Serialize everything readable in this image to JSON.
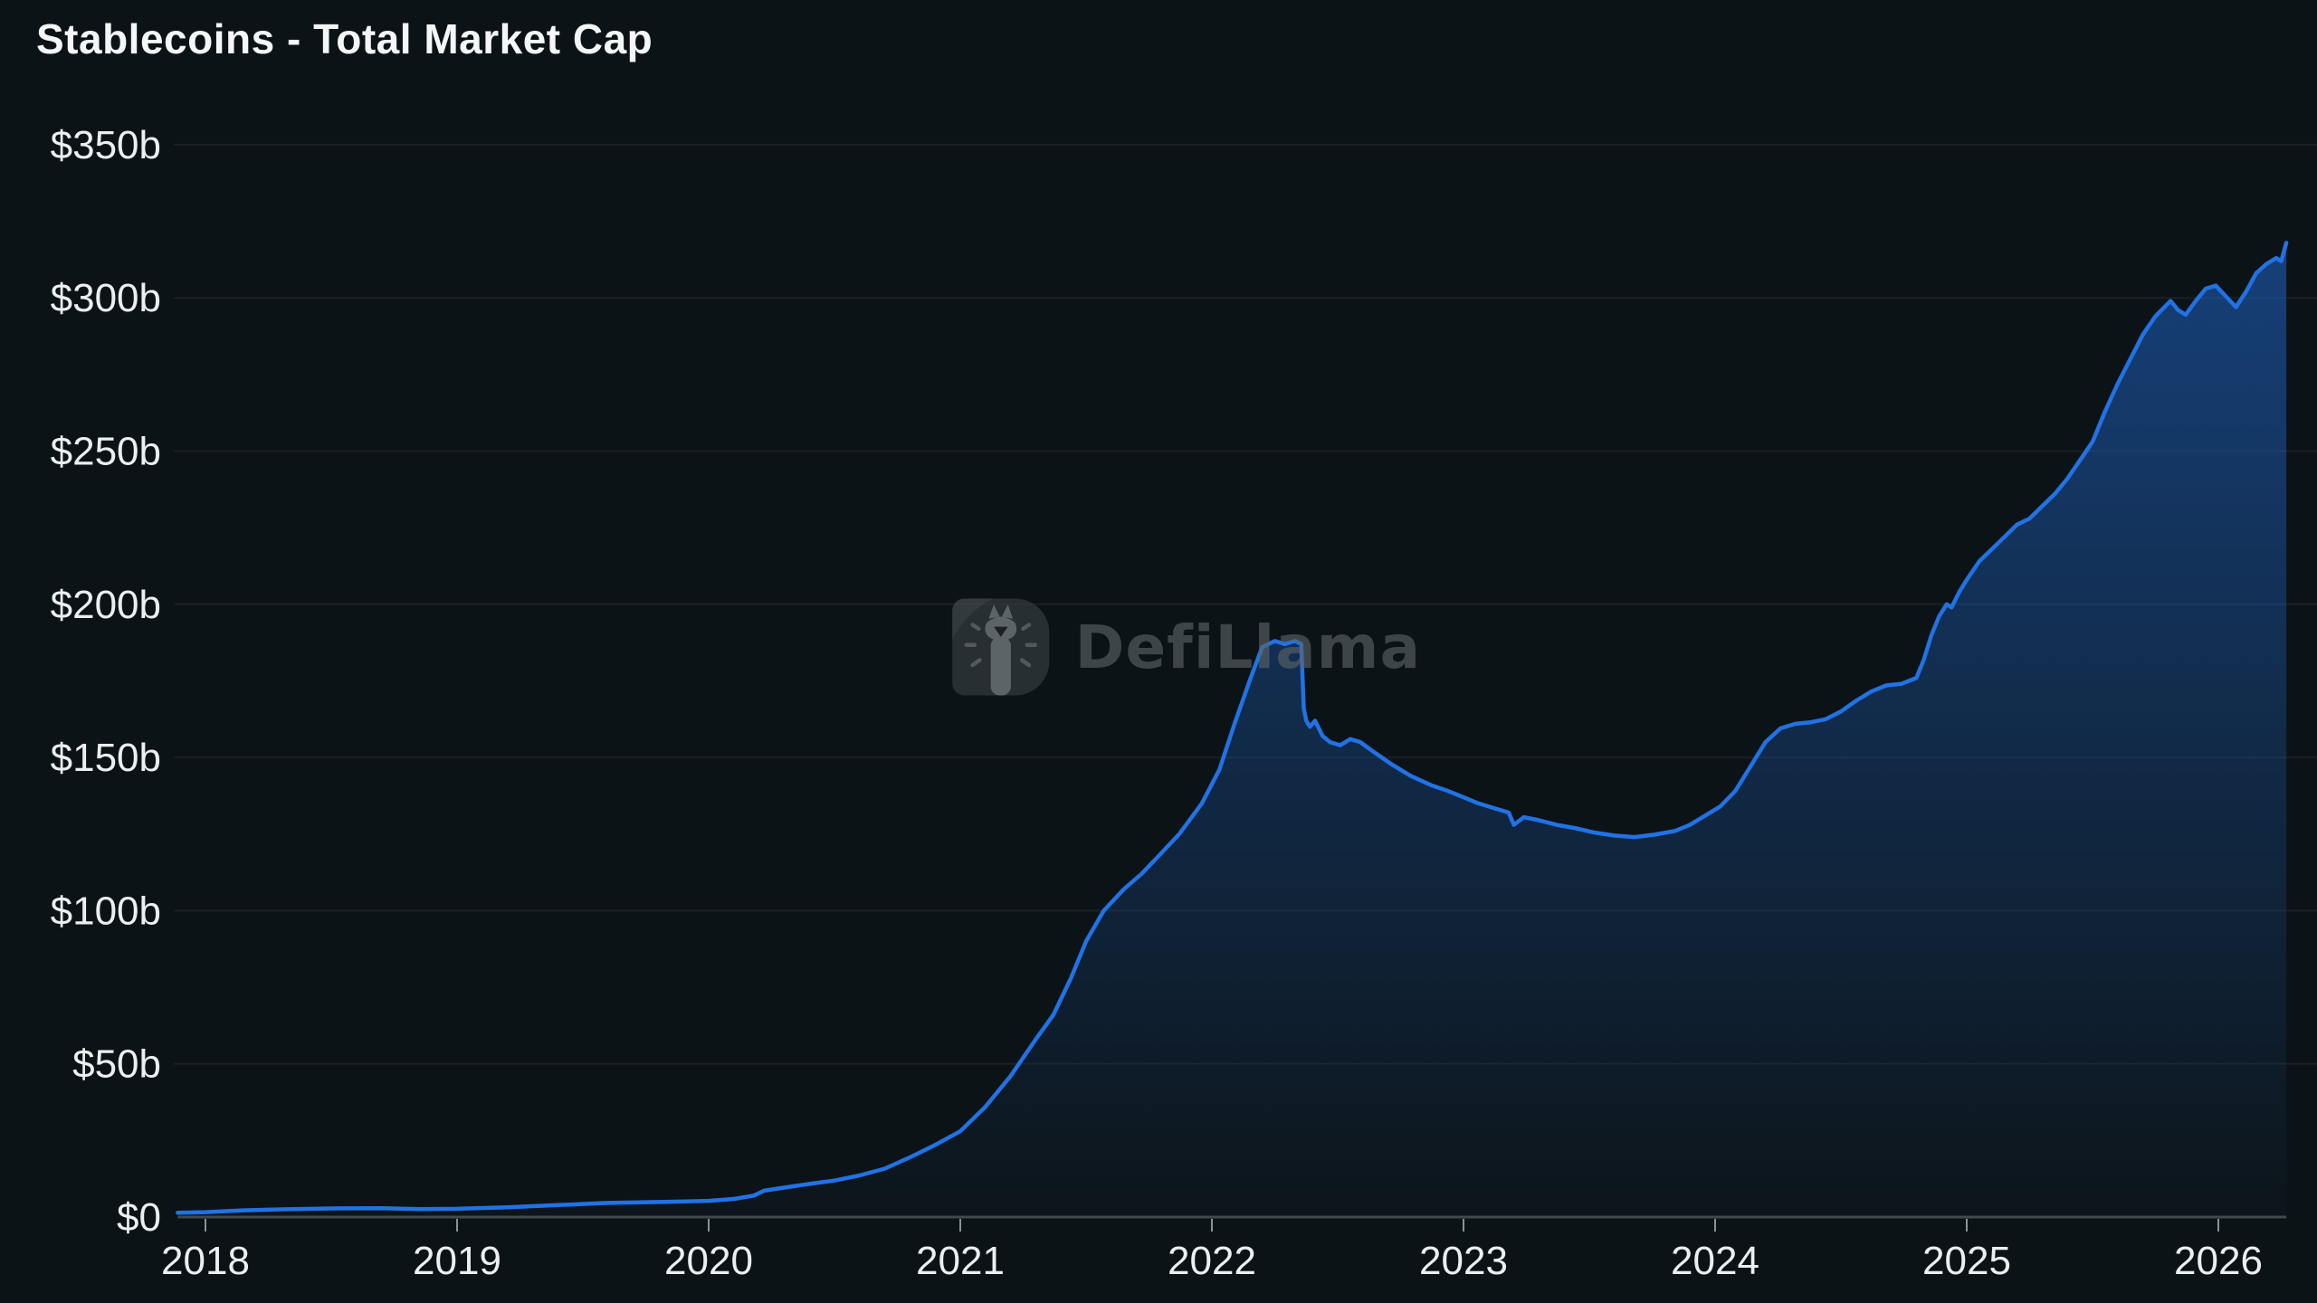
{
  "title": "Stablecoins - Total Market Cap",
  "watermark": {
    "brand": "DefiLlama",
    "llama_icon": "llama-in-rounded-square"
  },
  "colors": {
    "background": "#0c1316",
    "line": "#2172e5",
    "area_top": "rgba(33,114,229,0.52)",
    "area_bottom": "rgba(33,114,229,0.02)",
    "grid": "rgba(255,255,255,0.055)",
    "axis_line": "#42494e",
    "tick_mark": "#8b9296",
    "axis_label": "#eceff1",
    "title_text": "#f4f6f7",
    "watermark_text": "#5d6468"
  },
  "chart_data": {
    "type": "area",
    "title": "Stablecoins - Total Market Cap",
    "xlabel": "",
    "ylabel": "",
    "legend": "none",
    "grid": "horizontal gridlines only, very faint",
    "x_unit": "year (2018 - early 2026)",
    "y_unit": "USD billions",
    "ylim": [
      0,
      350
    ],
    "x_range": [
      2017.89,
      2026.28
    ],
    "y_ticks": [
      {
        "label": "$350b",
        "value": 350
      },
      {
        "label": "$300b",
        "value": 300
      },
      {
        "label": "$250b",
        "value": 250
      },
      {
        "label": "$200b",
        "value": 200
      },
      {
        "label": "$150b",
        "value": 150
      },
      {
        "label": "$100b",
        "value": 100
      },
      {
        "label": "$50b",
        "value": 50
      },
      {
        "label": "$0",
        "value": 0
      }
    ],
    "x_ticks": [
      {
        "label": "2018",
        "value": 2018
      },
      {
        "label": "2019",
        "value": 2019
      },
      {
        "label": "2020",
        "value": 2020
      },
      {
        "label": "2021",
        "value": 2021
      },
      {
        "label": "2022",
        "value": 2022
      },
      {
        "label": "2023",
        "value": 2023
      },
      {
        "label": "2024",
        "value": 2024
      },
      {
        "label": "2025",
        "value": 2025
      },
      {
        "label": "2026",
        "value": 2026
      }
    ],
    "key_features": {
      "start_2018": 1.6,
      "value_2021_start": 28,
      "peak_2022_apr": 188,
      "terra_crash_may_2022_drop_to": 160,
      "valley_late_2023": 124,
      "post_election_surge_end_2024": 200,
      "end_early_2026": 318
    },
    "series": [
      {
        "name": "Total stablecoins market cap",
        "unit": "USD billions",
        "points": [
          [
            2017.89,
            1.4
          ],
          [
            2018.0,
            1.6
          ],
          [
            2018.15,
            2.2
          ],
          [
            2018.3,
            2.5
          ],
          [
            2018.5,
            2.8
          ],
          [
            2018.7,
            2.9
          ],
          [
            2018.85,
            2.6
          ],
          [
            2019.0,
            2.7
          ],
          [
            2019.2,
            3.2
          ],
          [
            2019.4,
            3.9
          ],
          [
            2019.6,
            4.6
          ],
          [
            2019.8,
            4.9
          ],
          [
            2020.0,
            5.3
          ],
          [
            2020.1,
            5.9
          ],
          [
            2020.18,
            7.0
          ],
          [
            2020.22,
            8.6
          ],
          [
            2020.3,
            9.6
          ],
          [
            2020.4,
            10.8
          ],
          [
            2020.5,
            11.9
          ],
          [
            2020.6,
            13.6
          ],
          [
            2020.7,
            15.8
          ],
          [
            2020.8,
            19.5
          ],
          [
            2020.9,
            23.5
          ],
          [
            2021.0,
            28.0
          ],
          [
            2021.1,
            36
          ],
          [
            2021.2,
            46
          ],
          [
            2021.3,
            58
          ],
          [
            2021.37,
            66
          ],
          [
            2021.44,
            78
          ],
          [
            2021.5,
            90
          ],
          [
            2021.57,
            100
          ],
          [
            2021.65,
            107
          ],
          [
            2021.72,
            112
          ],
          [
            2021.79,
            118
          ],
          [
            2021.87,
            125
          ],
          [
            2021.96,
            135
          ],
          [
            2022.03,
            146
          ],
          [
            2022.09,
            161
          ],
          [
            2022.15,
            175
          ],
          [
            2022.2,
            186
          ],
          [
            2022.25,
            188
          ],
          [
            2022.29,
            187
          ],
          [
            2022.33,
            188
          ],
          [
            2022.355,
            187
          ],
          [
            2022.365,
            166
          ],
          [
            2022.375,
            162
          ],
          [
            2022.39,
            160
          ],
          [
            2022.41,
            162
          ],
          [
            2022.44,
            157
          ],
          [
            2022.47,
            155
          ],
          [
            2022.51,
            154
          ],
          [
            2022.55,
            156
          ],
          [
            2022.59,
            155
          ],
          [
            2022.64,
            152
          ],
          [
            2022.71,
            148
          ],
          [
            2022.79,
            144
          ],
          [
            2022.87,
            141
          ],
          [
            2022.94,
            139
          ],
          [
            2023.0,
            137
          ],
          [
            2023.06,
            135
          ],
          [
            2023.12,
            133.5
          ],
          [
            2023.18,
            132
          ],
          [
            2023.2,
            128
          ],
          [
            2023.24,
            130.5
          ],
          [
            2023.3,
            129.5
          ],
          [
            2023.37,
            128
          ],
          [
            2023.44,
            127
          ],
          [
            2023.52,
            125.5
          ],
          [
            2023.6,
            124.5
          ],
          [
            2023.68,
            124
          ],
          [
            2023.76,
            124.8
          ],
          [
            2023.84,
            126
          ],
          [
            2023.9,
            128
          ],
          [
            2023.96,
            131
          ],
          [
            2024.02,
            134
          ],
          [
            2024.08,
            139
          ],
          [
            2024.14,
            147
          ],
          [
            2024.2,
            155
          ],
          [
            2024.26,
            159.5
          ],
          [
            2024.32,
            161
          ],
          [
            2024.38,
            161.5
          ],
          [
            2024.44,
            162.5
          ],
          [
            2024.5,
            165
          ],
          [
            2024.56,
            168.5
          ],
          [
            2024.62,
            171.5
          ],
          [
            2024.68,
            173.5
          ],
          [
            2024.74,
            174
          ],
          [
            2024.8,
            176
          ],
          [
            2024.83,
            182
          ],
          [
            2024.86,
            190
          ],
          [
            2024.89,
            196
          ],
          [
            2024.92,
            200
          ],
          [
            2024.94,
            199
          ],
          [
            2024.97,
            204
          ],
          [
            2025.0,
            208
          ],
          [
            2025.05,
            214
          ],
          [
            2025.1,
            218
          ],
          [
            2025.15,
            222
          ],
          [
            2025.2,
            226
          ],
          [
            2025.25,
            228
          ],
          [
            2025.3,
            232
          ],
          [
            2025.35,
            236
          ],
          [
            2025.4,
            241
          ],
          [
            2025.45,
            247
          ],
          [
            2025.5,
            253
          ],
          [
            2025.55,
            263
          ],
          [
            2025.6,
            272
          ],
          [
            2025.65,
            280
          ],
          [
            2025.7,
            288
          ],
          [
            2025.75,
            294
          ],
          [
            2025.81,
            299
          ],
          [
            2025.84,
            296
          ],
          [
            2025.87,
            294.5
          ],
          [
            2025.91,
            299
          ],
          [
            2025.95,
            303
          ],
          [
            2025.99,
            304
          ],
          [
            2026.03,
            300.5
          ],
          [
            2026.07,
            297
          ],
          [
            2026.11,
            302
          ],
          [
            2026.15,
            308
          ],
          [
            2026.19,
            311
          ],
          [
            2026.23,
            313
          ],
          [
            2026.25,
            312
          ],
          [
            2026.27,
            318
          ]
        ]
      }
    ]
  }
}
